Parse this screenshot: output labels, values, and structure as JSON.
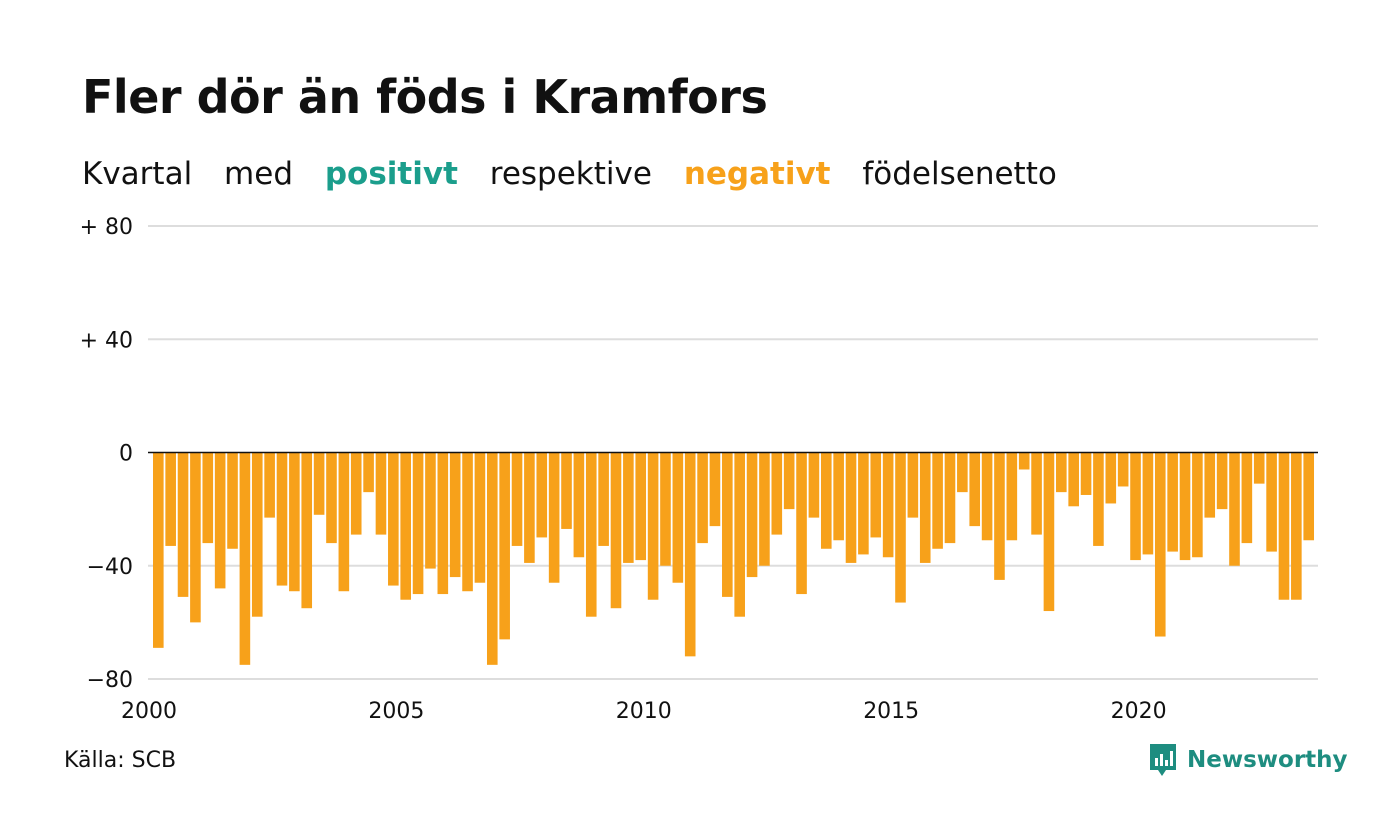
{
  "title": "Fler dör än föds i Kramfors",
  "subtitle": {
    "part1": "Kvartal",
    "part2": "med",
    "positive_word": "positivt",
    "part3": "respektive",
    "negative_word": "negativt",
    "part4": "födelsenetto"
  },
  "colors": {
    "negative": "#f7a11a",
    "positive": "#1b9e8c",
    "brand": "#1e8d80",
    "grid": "#dddddd",
    "text": "#111111"
  },
  "chart_data": {
    "type": "bar",
    "title": "Fler dör än föds i Kramfors",
    "subtitle": "Kvartal med positivt respektive negativt födelsenetto",
    "ylim": [
      -80,
      80
    ],
    "y_ticks": [
      80,
      40,
      0,
      -40,
      -80
    ],
    "y_tick_labels": [
      "+ 80",
      "+ 40",
      "0",
      "−40",
      "−80"
    ],
    "x_ticks": [
      2000,
      2005,
      2010,
      2015,
      2020
    ],
    "x_tick_labels": [
      "2000",
      "2005",
      "2010",
      "2015",
      "2020"
    ],
    "grid": true,
    "x_start": 2000,
    "values": [
      -69,
      -33,
      -51,
      -60,
      -32,
      -48,
      -34,
      -75,
      -58,
      -23,
      -47,
      -49,
      -55,
      -22,
      -32,
      -49,
      -29,
      -14,
      -29,
      -47,
      -52,
      -50,
      -41,
      -50,
      -44,
      -49,
      -46,
      -75,
      -66,
      -33,
      -39,
      -30,
      -46,
      -27,
      -37,
      -58,
      -33,
      -55,
      -39,
      -38,
      -52,
      -40,
      -46,
      -72,
      -32,
      -26,
      -51,
      -58,
      -44,
      -40,
      -29,
      -20,
      -50,
      -23,
      -34,
      -31,
      -39,
      -36,
      -30,
      -37,
      -53,
      -23,
      -39,
      -34,
      -32,
      -14,
      -26,
      -31,
      -45,
      -31,
      -6,
      -29,
      -56,
      -14,
      -19,
      -15,
      -33,
      -18,
      -12,
      -38,
      -36,
      -65,
      -35,
      -38,
      -37,
      -23,
      -20,
      -40,
      -32,
      -11,
      -35,
      -52,
      -52,
      -31
    ]
  },
  "source": "Källa: SCB",
  "brand": {
    "name": "Newsworthy",
    "icon": "newsworthy-logo-icon"
  }
}
